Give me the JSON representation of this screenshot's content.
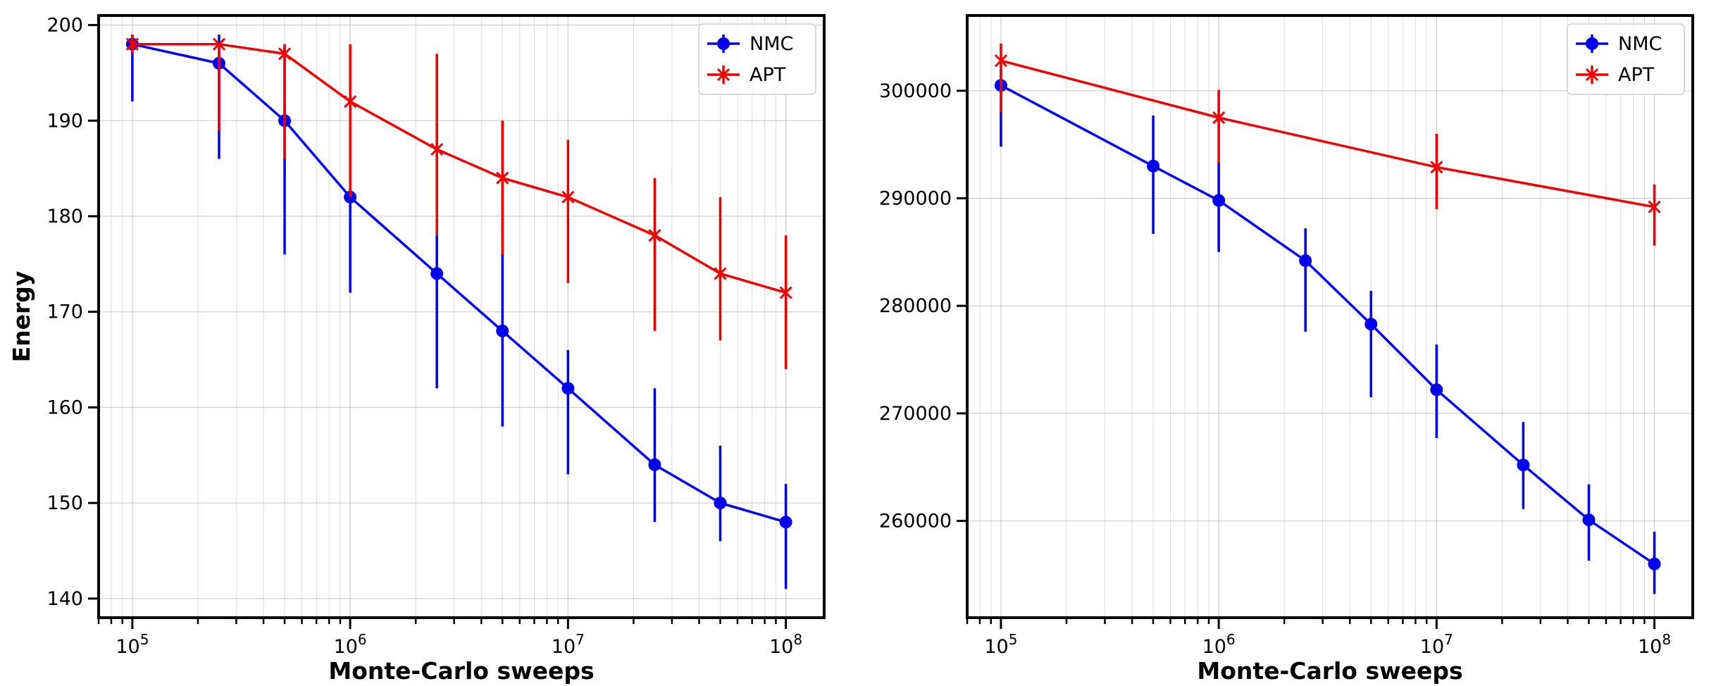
{
  "figure": {
    "panels": [
      {
        "xlabel": "Monte-Carlo sweeps",
        "ylabel": "Energy",
        "y_ticks": [
          "140",
          "150",
          "160",
          "170",
          "180",
          "190",
          "200"
        ]
      },
      {
        "xlabel": "Monte-Carlo sweeps",
        "ylabel": "",
        "y_ticks": [
          "260000",
          "270000",
          "280000",
          "290000",
          "300000"
        ]
      }
    ]
  },
  "chart_data": [
    {
      "type": "line",
      "title": "",
      "xlabel": "Monte-Carlo sweeps",
      "ylabel": "Energy",
      "x_scale": "log",
      "xlim": [
        70000,
        150000000
      ],
      "ylim": [
        138,
        201
      ],
      "x_tick_labels": [
        "10^5",
        "10^6",
        "10^7",
        "10^8"
      ],
      "y_ticks": [
        140,
        150,
        160,
        170,
        180,
        190,
        200
      ],
      "grid": true,
      "legend": "top-right",
      "series": [
        {
          "name": "NMC",
          "color": "#0000ee",
          "marker": "circle",
          "x": [
            100000,
            250000,
            500000,
            1000000,
            2500000,
            5000000,
            10000000,
            25000000,
            50000000,
            100000000
          ],
          "y": [
            198,
            196,
            190,
            182,
            174,
            168,
            162,
            154,
            150,
            148
          ],
          "yerr_low": [
            192,
            186,
            176,
            172,
            162,
            158,
            153,
            148,
            146,
            141
          ],
          "yerr_high": [
            199,
            199,
            198,
            183,
            178,
            176,
            166,
            162,
            156,
            152
          ]
        },
        {
          "name": "APT",
          "color": "#ee0000",
          "marker": "x",
          "x": [
            100000,
            250000,
            500000,
            1000000,
            2500000,
            5000000,
            10000000,
            25000000,
            50000000,
            100000000
          ],
          "y": [
            198,
            198,
            197,
            192,
            187,
            184,
            182,
            178,
            174,
            172
          ],
          "yerr_low": [
            197,
            189,
            186,
            182,
            178,
            176,
            173,
            168,
            167,
            164
          ],
          "yerr_high": [
            199,
            198,
            198,
            198,
            197,
            190,
            188,
            184,
            182,
            178
          ]
        }
      ]
    },
    {
      "type": "line",
      "title": "",
      "xlabel": "Monte-Carlo sweeps",
      "ylabel": "",
      "x_scale": "log",
      "xlim": [
        70000,
        150000000
      ],
      "ylim": [
        251000,
        307000
      ],
      "x_tick_labels": [
        "10^5",
        "10^6",
        "10^7",
        "10^8"
      ],
      "y_ticks": [
        260000,
        270000,
        280000,
        290000,
        300000
      ],
      "grid": true,
      "legend": "top-right",
      "series": [
        {
          "name": "NMC",
          "color": "#0000ee",
          "marker": "circle",
          "x": [
            100000,
            500000,
            1000000,
            2500000,
            5000000,
            10000000,
            25000000,
            50000000,
            100000000
          ],
          "y": [
            300500,
            293000,
            289800,
            284200,
            278300,
            272200,
            265200,
            260100,
            256000
          ],
          "yerr_low": [
            294800,
            286700,
            285000,
            277600,
            271500,
            267700,
            261100,
            256300,
            253200
          ],
          "yerr_high": [
            302000,
            297700,
            293300,
            287200,
            281400,
            276400,
            269200,
            263400,
            259000
          ]
        },
        {
          "name": "APT",
          "color": "#ee0000",
          "marker": "x",
          "x": [
            100000,
            1000000,
            10000000,
            100000000
          ],
          "y": [
            302800,
            297500,
            292900,
            289200
          ],
          "yerr_low": [
            298000,
            293300,
            289000,
            285600
          ],
          "yerr_high": [
            304400,
            300100,
            296000,
            291300
          ]
        }
      ]
    }
  ]
}
